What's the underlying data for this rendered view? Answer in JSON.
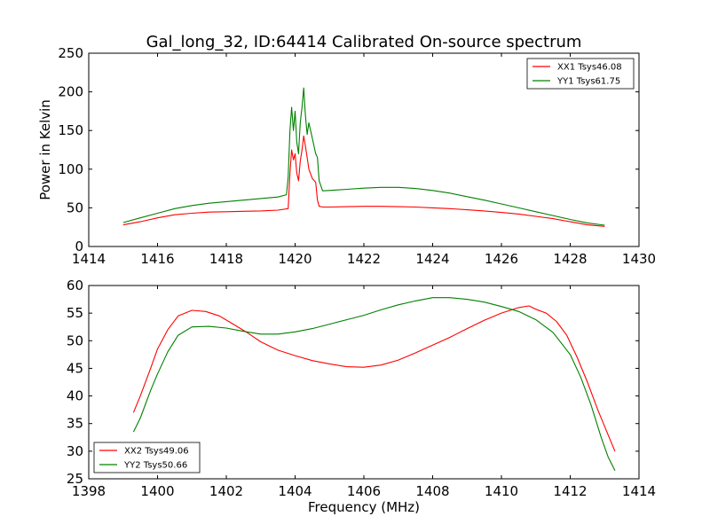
{
  "chart_data": [
    {
      "type": "line",
      "title": "Gal_long_32, ID:64414 Calibrated On-source spectrum",
      "xlabel": "",
      "ylabel": "Power in Kelvin",
      "xlim": [
        1414,
        1430
      ],
      "ylim": [
        0,
        250
      ],
      "xticks": [
        1414,
        1416,
        1418,
        1420,
        1422,
        1424,
        1426,
        1428,
        1430
      ],
      "yticks": [
        0,
        50,
        100,
        150,
        200,
        250
      ],
      "grid": false,
      "legend_position": "top-right",
      "series": [
        {
          "name": "XX1 Tsys46.08",
          "color": "#ff0000",
          "points": [
            [
              1415,
              28
            ],
            [
              1415.5,
              32
            ],
            [
              1416,
              37
            ],
            [
              1416.5,
              41
            ],
            [
              1417,
              43
            ],
            [
              1417.5,
              44.5
            ],
            [
              1418,
              45
            ],
            [
              1418.5,
              45.5
            ],
            [
              1419,
              46
            ],
            [
              1419.5,
              47
            ],
            [
              1419.8,
              49
            ],
            [
              1419.85,
              95
            ],
            [
              1419.9,
              125
            ],
            [
              1419.95,
              112
            ],
            [
              1420,
              120
            ],
            [
              1420.05,
              95
            ],
            [
              1420.1,
              85
            ],
            [
              1420.15,
              110
            ],
            [
              1420.2,
              125
            ],
            [
              1420.25,
              143
            ],
            [
              1420.3,
              130
            ],
            [
              1420.35,
              115
            ],
            [
              1420.4,
              100
            ],
            [
              1420.5,
              88
            ],
            [
              1420.6,
              83
            ],
            [
              1420.65,
              60
            ],
            [
              1420.7,
              52
            ],
            [
              1420.8,
              51
            ],
            [
              1421,
              51
            ],
            [
              1421.5,
              51.5
            ],
            [
              1422,
              52
            ],
            [
              1422.5,
              52
            ],
            [
              1423,
              51.5
            ],
            [
              1423.5,
              51
            ],
            [
              1424,
              50
            ],
            [
              1424.5,
              49
            ],
            [
              1425,
              47.5
            ],
            [
              1425.5,
              46
            ],
            [
              1426,
              44
            ],
            [
              1426.5,
              42
            ],
            [
              1427,
              39
            ],
            [
              1427.5,
              36
            ],
            [
              1428,
              32
            ],
            [
              1428.5,
              28
            ],
            [
              1429,
              26
            ]
          ]
        },
        {
          "name": "YY1 Tsys61.75",
          "color": "#008000",
          "points": [
            [
              1415,
              31
            ],
            [
              1415.5,
              37
            ],
            [
              1416,
              43
            ],
            [
              1416.5,
              49
            ],
            [
              1417,
              53
            ],
            [
              1417.5,
              56
            ],
            [
              1418,
              58
            ],
            [
              1418.5,
              60
            ],
            [
              1419,
              62
            ],
            [
              1419.5,
              64
            ],
            [
              1419.75,
              67
            ],
            [
              1419.8,
              90
            ],
            [
              1419.85,
              150
            ],
            [
              1419.9,
              180
            ],
            [
              1419.95,
              150
            ],
            [
              1420,
              175
            ],
            [
              1420.05,
              135
            ],
            [
              1420.1,
              120
            ],
            [
              1420.15,
              160
            ],
            [
              1420.2,
              180
            ],
            [
              1420.25,
              205
            ],
            [
              1420.3,
              170
            ],
            [
              1420.35,
              145
            ],
            [
              1420.4,
              160
            ],
            [
              1420.5,
              140
            ],
            [
              1420.6,
              120
            ],
            [
              1420.65,
              115
            ],
            [
              1420.7,
              85
            ],
            [
              1420.8,
              72
            ],
            [
              1421,
              72.5
            ],
            [
              1421.5,
              74
            ],
            [
              1422,
              75.5
            ],
            [
              1422.5,
              76.5
            ],
            [
              1423,
              76.5
            ],
            [
              1423.5,
              75
            ],
            [
              1424,
              72.5
            ],
            [
              1424.5,
              69
            ],
            [
              1425,
              64.5
            ],
            [
              1425.5,
              60
            ],
            [
              1426,
              55
            ],
            [
              1426.5,
              50
            ],
            [
              1427,
              45
            ],
            [
              1427.5,
              40
            ],
            [
              1428,
              35
            ],
            [
              1428.5,
              30.5
            ],
            [
              1429,
              27.5
            ]
          ]
        }
      ]
    },
    {
      "type": "line",
      "title": "",
      "xlabel": "Frequency (MHz)",
      "ylabel": "",
      "xlim": [
        1398,
        1414
      ],
      "ylim": [
        25,
        60
      ],
      "xticks": [
        1398,
        1400,
        1402,
        1404,
        1406,
        1408,
        1410,
        1412,
        1414
      ],
      "yticks": [
        25,
        30,
        35,
        40,
        45,
        50,
        55,
        60
      ],
      "grid": false,
      "legend_position": "bottom-left",
      "series": [
        {
          "name": "XX2 Tsys49.06",
          "color": "#ff0000",
          "points": [
            [
              1399.3,
              37
            ],
            [
              1399.5,
              40
            ],
            [
              1399.8,
              45
            ],
            [
              1400,
              48.5
            ],
            [
              1400.3,
              52
            ],
            [
              1400.6,
              54.5
            ],
            [
              1401,
              55.5
            ],
            [
              1401.4,
              55.3
            ],
            [
              1401.8,
              54.5
            ],
            [
              1402.2,
              53
            ],
            [
              1402.6,
              51.5
            ],
            [
              1403,
              49.8
            ],
            [
              1403.5,
              48.3
            ],
            [
              1404,
              47.3
            ],
            [
              1404.5,
              46.4
            ],
            [
              1405,
              45.8
            ],
            [
              1405.5,
              45.3
            ],
            [
              1406,
              45.2
            ],
            [
              1406.5,
              45.6
            ],
            [
              1407,
              46.5
            ],
            [
              1407.5,
              47.8
            ],
            [
              1408,
              49.2
            ],
            [
              1408.5,
              50.6
            ],
            [
              1409,
              52.2
            ],
            [
              1409.5,
              53.7
            ],
            [
              1410,
              55
            ],
            [
              1410.5,
              56
            ],
            [
              1410.8,
              56.3
            ],
            [
              1411,
              55.7
            ],
            [
              1411.3,
              55
            ],
            [
              1411.6,
              53.5
            ],
            [
              1411.9,
              51
            ],
            [
              1412.2,
              47
            ],
            [
              1412.5,
              42.5
            ],
            [
              1412.8,
              37.5
            ],
            [
              1413.1,
              33
            ],
            [
              1413.3,
              30
            ]
          ]
        },
        {
          "name": "YY2 Tsys50.66",
          "color": "#008000",
          "points": [
            [
              1399.3,
              33.5
            ],
            [
              1399.5,
              36
            ],
            [
              1399.8,
              41
            ],
            [
              1400,
              44
            ],
            [
              1400.3,
              48
            ],
            [
              1400.6,
              51
            ],
            [
              1401,
              52.5
            ],
            [
              1401.5,
              52.6
            ],
            [
              1402,
              52.3
            ],
            [
              1402.5,
              51.7
            ],
            [
              1403,
              51.2
            ],
            [
              1403.5,
              51.2
            ],
            [
              1404,
              51.6
            ],
            [
              1404.5,
              52.2
            ],
            [
              1405,
              53
            ],
            [
              1405.5,
              53.8
            ],
            [
              1406,
              54.6
            ],
            [
              1406.5,
              55.6
            ],
            [
              1407,
              56.5
            ],
            [
              1407.5,
              57.2
            ],
            [
              1408,
              57.8
            ],
            [
              1408.5,
              57.8
            ],
            [
              1409,
              57.5
            ],
            [
              1409.5,
              57
            ],
            [
              1410,
              56.2
            ],
            [
              1410.5,
              55.3
            ],
            [
              1411,
              53.8
            ],
            [
              1411.5,
              51.5
            ],
            [
              1412,
              47.5
            ],
            [
              1412.3,
              43.5
            ],
            [
              1412.6,
              38.5
            ],
            [
              1412.9,
              32.5
            ],
            [
              1413.1,
              29
            ],
            [
              1413.3,
              26.5
            ]
          ]
        }
      ]
    }
  ]
}
